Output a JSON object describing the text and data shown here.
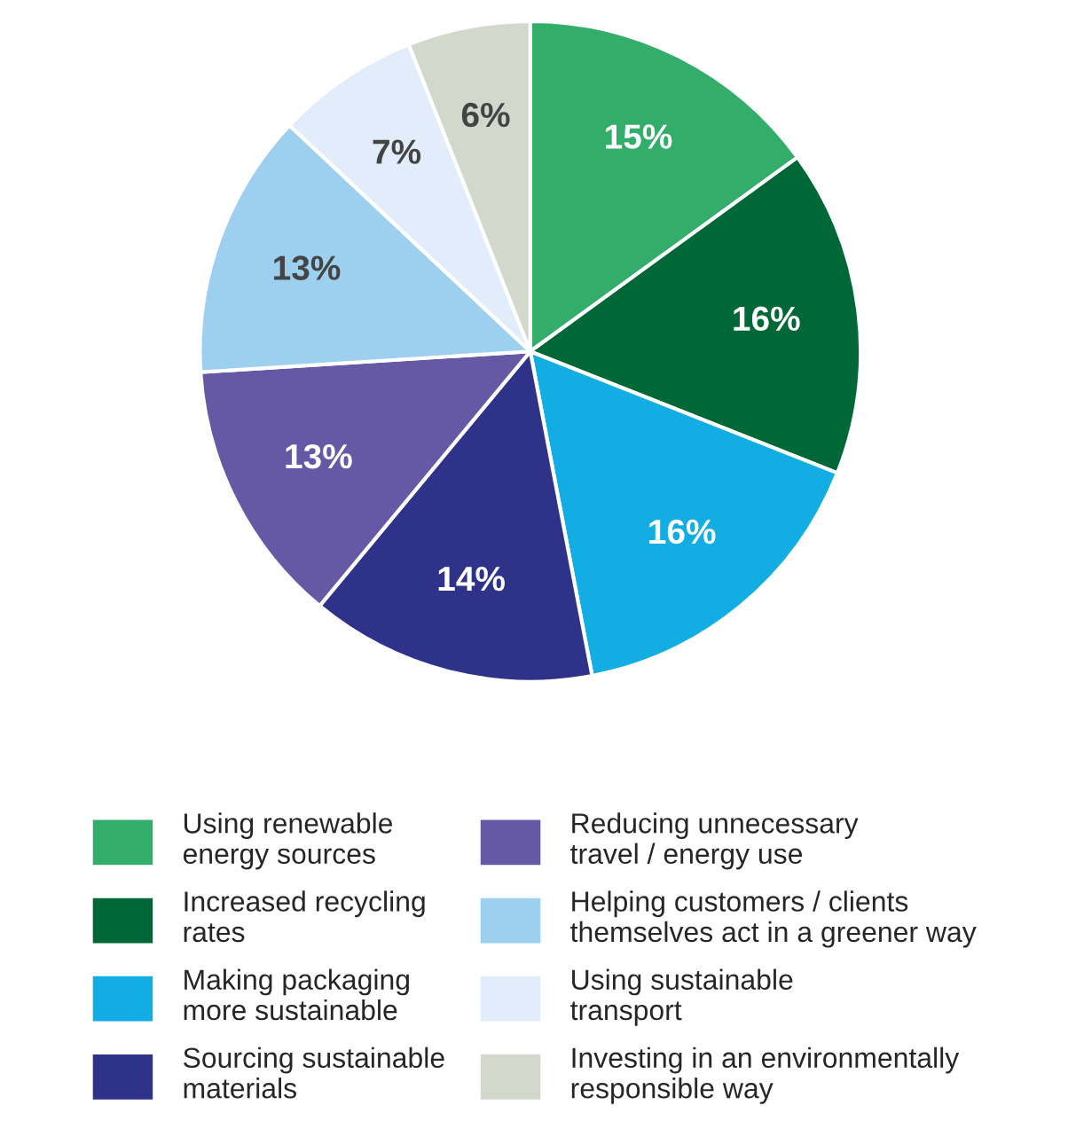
{
  "chart_data": {
    "type": "pie",
    "categories": [
      "Using renewable\nenergy sources",
      "Increased recycling\nrates",
      "Making packaging\nmore sustainable",
      "Sourcing sustainable\nmaterials",
      "Reducing unnecessary\ntravel / energy use",
      "Helping customers / clients\nthemselves act in a greener way",
      "Using sustainable\ntransport",
      "Investing in an environmentally\nresponsible way"
    ],
    "values": [
      15,
      16,
      16,
      14,
      13,
      13,
      7,
      6
    ],
    "colors": [
      "#33ad6a",
      "#006837",
      "#12ade3",
      "#2e3288",
      "#6558a4",
      "#9dcfee",
      "#e1edfa",
      "#d2d9cc"
    ],
    "value_labels": [
      "15%",
      "16%",
      "16%",
      "14%",
      "13%",
      "13%",
      "7%",
      "6%"
    ],
    "legend": "bottom"
  }
}
